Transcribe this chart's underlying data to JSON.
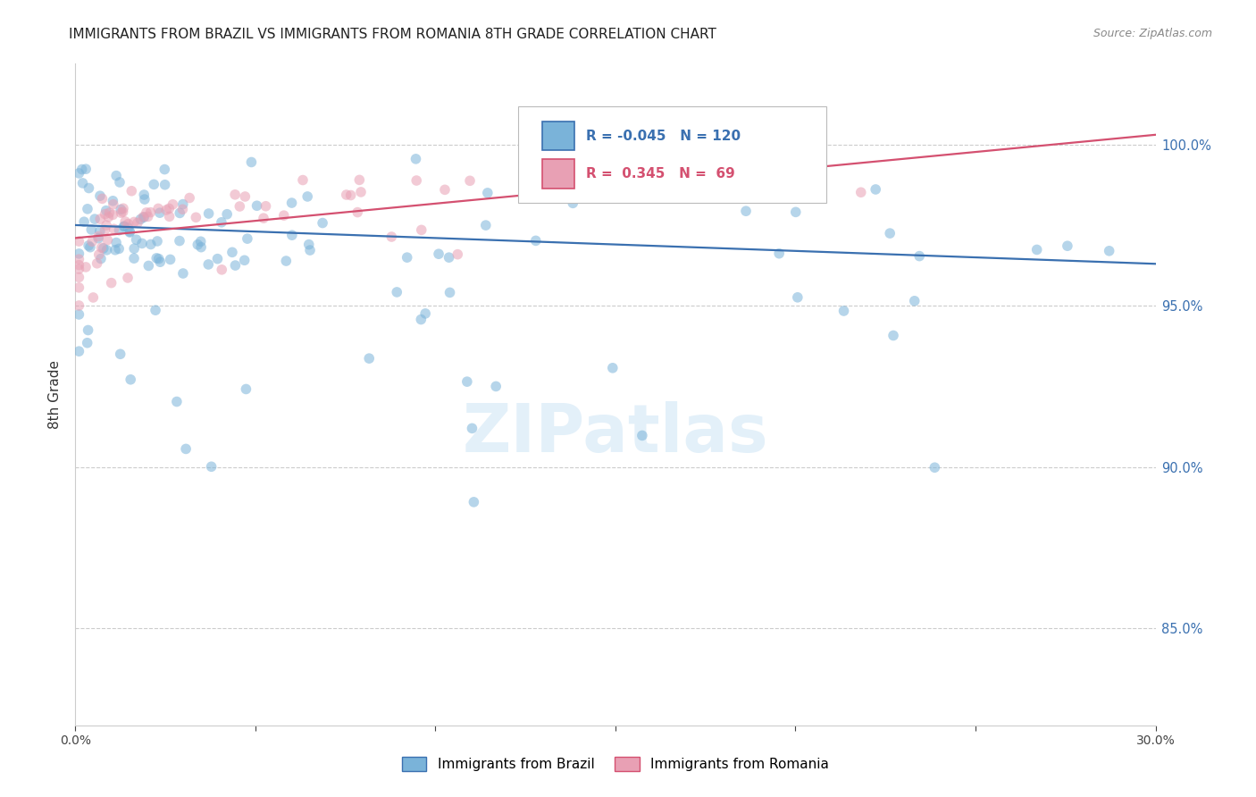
{
  "title": "IMMIGRANTS FROM BRAZIL VS IMMIGRANTS FROM ROMANIA 8TH GRADE CORRELATION CHART",
  "source": "Source: ZipAtlas.com",
  "ylabel": "8th Grade",
  "xrange": [
    0.0,
    0.3
  ],
  "yrange": [
    0.82,
    1.025
  ],
  "legend_brazil_r": "-0.045",
  "legend_brazil_n": "120",
  "legend_romania_r": "0.345",
  "legend_romania_n": "69",
  "brazil_color": "#7ab3d9",
  "romania_color": "#e8a0b4",
  "brazil_line_color": "#3a70b0",
  "romania_line_color": "#d45070",
  "brazil_alpha": 0.55,
  "romania_alpha": 0.55,
  "marker_size": 70,
  "watermark": "ZIPatlas",
  "yticks": [
    0.85,
    0.9,
    0.95,
    1.0
  ],
  "ytick_labels": [
    "85.0%",
    "90.0%",
    "95.0%",
    "100.0%"
  ]
}
